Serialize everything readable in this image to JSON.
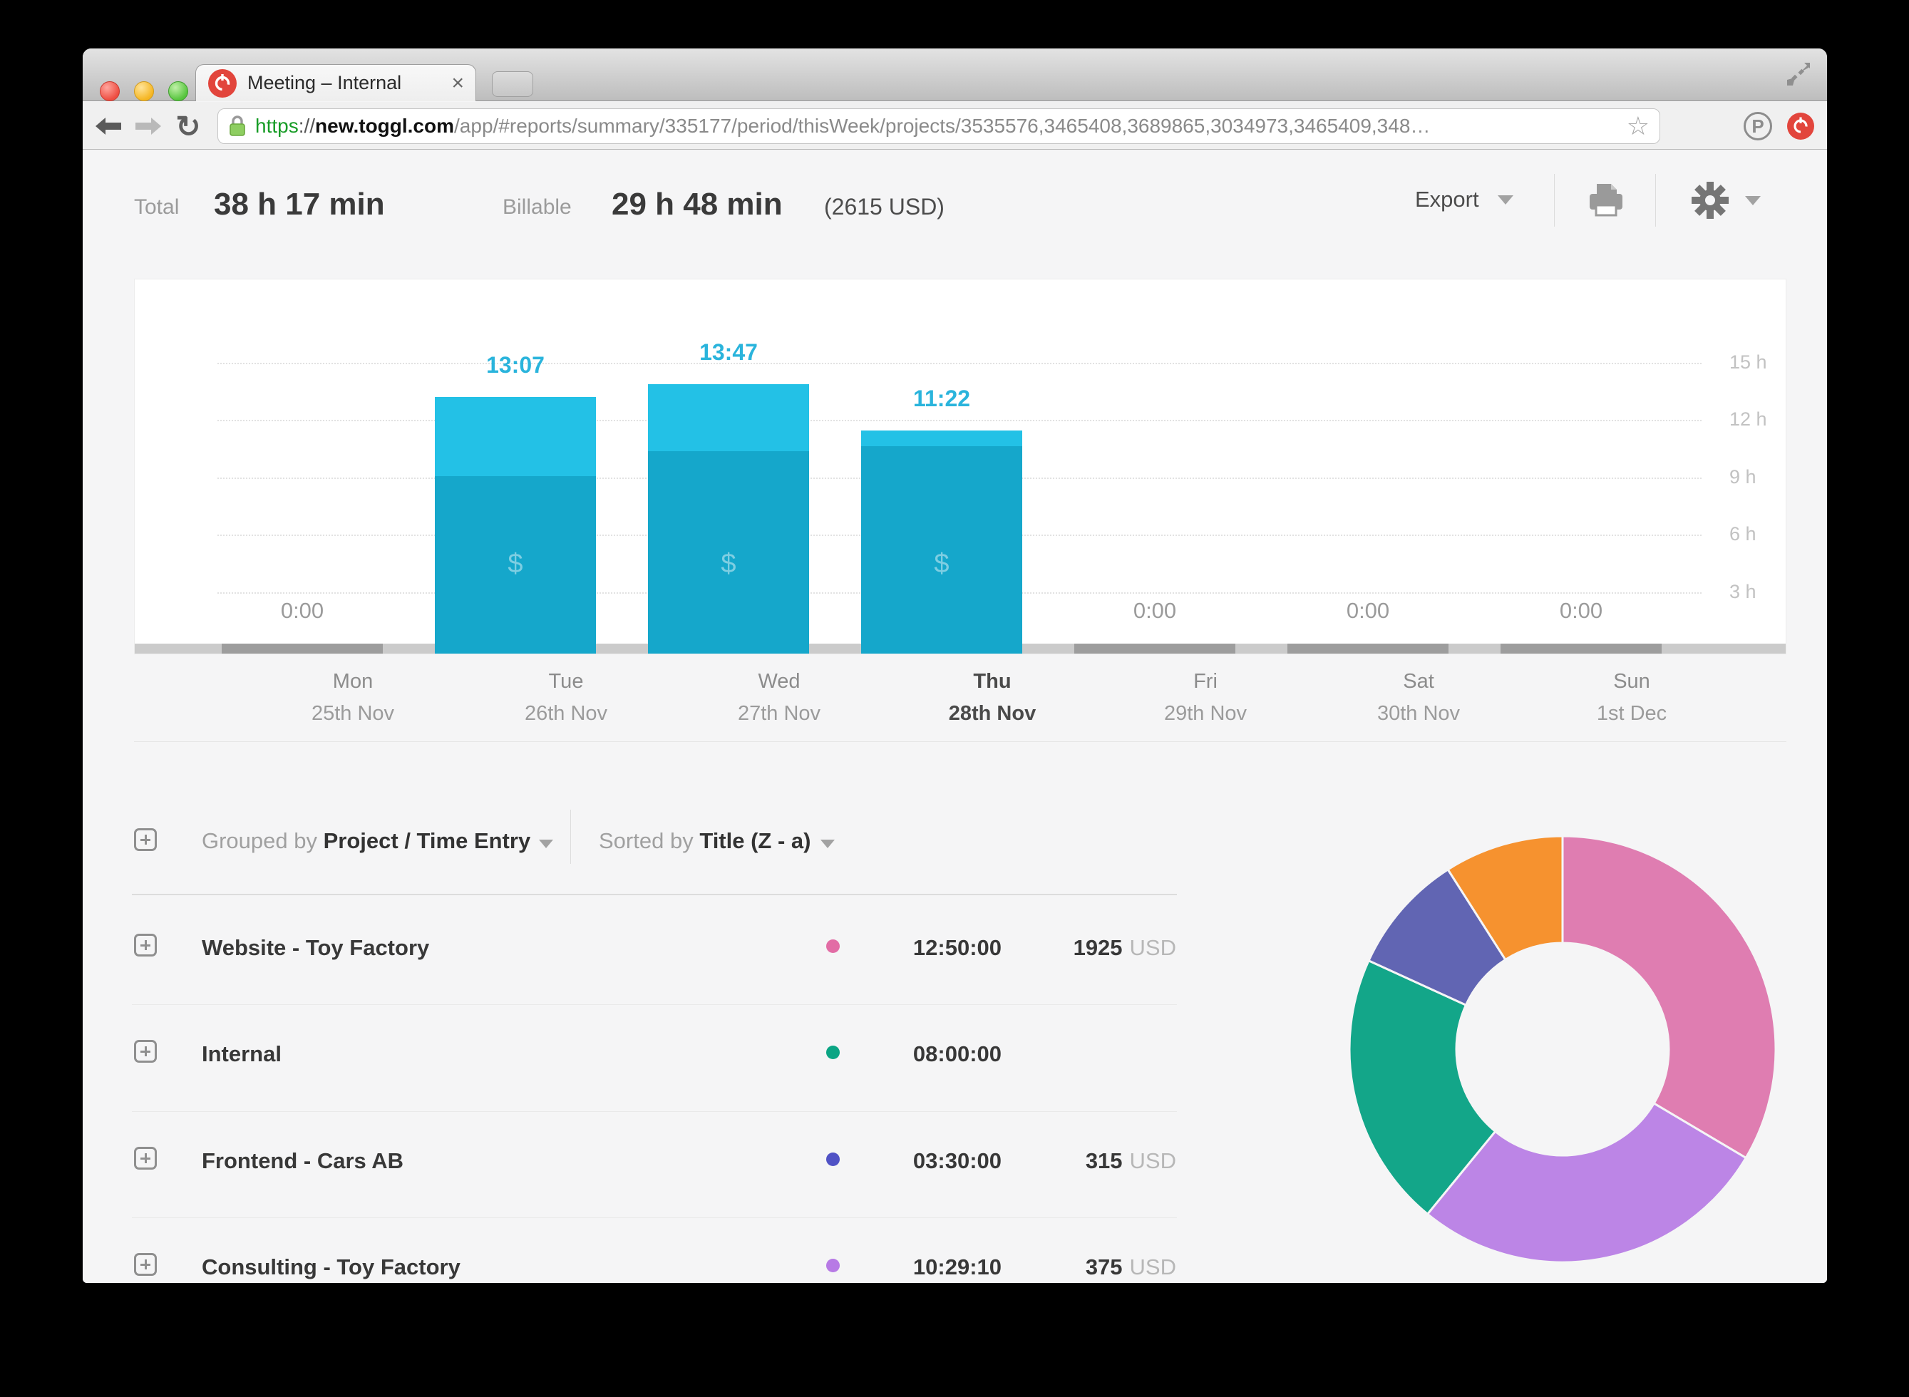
{
  "browser": {
    "tab": {
      "title": "Meeting – Internal",
      "close_label": "×"
    },
    "toolbar": {
      "url_scheme": "https",
      "url_separator": "://",
      "url_host": "new.toggl.com",
      "url_path": "/app/#reports/summary/335177/period/thisWeek/projects/3535576,3465408,3689865,3034973,3465409,348…",
      "star_glyph": "☆",
      "reload_glyph": "↻",
      "extension_p_label": "P"
    }
  },
  "report_header": {
    "total_label": "Total",
    "total_value": "38 h 17 min",
    "billable_label": "Billable",
    "billable_value": "29 h 48 min",
    "billable_amount": "(2615 USD)",
    "export_label": "Export"
  },
  "grouping": {
    "grouped_by_label": "Grouped by ",
    "grouped_by_value": "Project / Time Entry",
    "sorted_by_label": "Sorted by ",
    "sorted_by_value": "Title (Z - a)"
  },
  "projects": [
    {
      "name": "Website - Toy Factory",
      "color": "#e26ca5",
      "time": "12:50:00",
      "amount": "1925",
      "currency": "USD"
    },
    {
      "name": "Internal",
      "color": "#0ba584",
      "time": "08:00:00",
      "amount": "",
      "currency": ""
    },
    {
      "name": "Frontend - Cars AB",
      "color": "#5052c5",
      "time": "03:30:00",
      "amount": "315",
      "currency": "USD"
    },
    {
      "name": "Consulting - Toy Factory",
      "color": "#b77ae5",
      "time": "10:29:10",
      "amount": "375",
      "currency": "USD"
    }
  ],
  "chart_data": [
    {
      "type": "bar",
      "title": "Tracked time per day, this week",
      "categories": [
        "Mon",
        "Tue",
        "Wed",
        "Thu",
        "Fri",
        "Sat",
        "Sun"
      ],
      "dates": [
        "25th Nov",
        "26th Nov",
        "27th Nov",
        "28th Nov",
        "29th Nov",
        "30th Nov",
        "1st Dec"
      ],
      "bar_labels": [
        "0:00",
        "13:07",
        "13:47",
        "11:22",
        "0:00",
        "0:00",
        "0:00"
      ],
      "total_hours": [
        0,
        13.12,
        13.78,
        11.37,
        0,
        0,
        0
      ],
      "series": [
        {
          "name": "billable",
          "values": [
            0,
            9.0,
            10.3,
            10.55,
            0,
            0,
            0
          ],
          "color": "#15a7cb"
        },
        {
          "name": "non-billable",
          "values": [
            0,
            4.12,
            3.48,
            0.82,
            0,
            0,
            0
          ],
          "color": "#23c1e6"
        }
      ],
      "yticks": [
        {
          "label": "3 h",
          "hours": 3
        },
        {
          "label": "6 h",
          "hours": 6
        },
        {
          "label": "9 h",
          "hours": 9
        },
        {
          "label": "12 h",
          "hours": 12
        },
        {
          "label": "15 h",
          "hours": 15
        }
      ],
      "ylim": [
        0,
        19
      ],
      "grid": "dotted-horizontal",
      "legend": "none",
      "highlight_category": "Thu",
      "billable_marker": "$",
      "value_label_color": "#2ab4dc",
      "zero_label_color": "#9b9b9b",
      "baseline_color": "#cbcbcb",
      "baseline_zero_color": "#9d9d9d"
    },
    {
      "type": "pie",
      "style": "donut",
      "inner_radius_ratio": 0.5,
      "start": "12 o'clock, clockwise",
      "legend": "none",
      "segments": [
        {
          "name": "Website - Toy Factory",
          "hours": 12.83,
          "color": "#df7db1"
        },
        {
          "name": "Consulting - Toy Factory",
          "hours": 10.49,
          "color": "#bc85e6"
        },
        {
          "name": "Internal",
          "hours": 8.0,
          "color": "#13a689"
        },
        {
          "name": "Frontend - Cars AB",
          "hours": 3.5,
          "color": "#6165b3"
        },
        {
          "name": "",
          "hours": 3.46,
          "color": "#f6922f"
        }
      ]
    }
  ]
}
